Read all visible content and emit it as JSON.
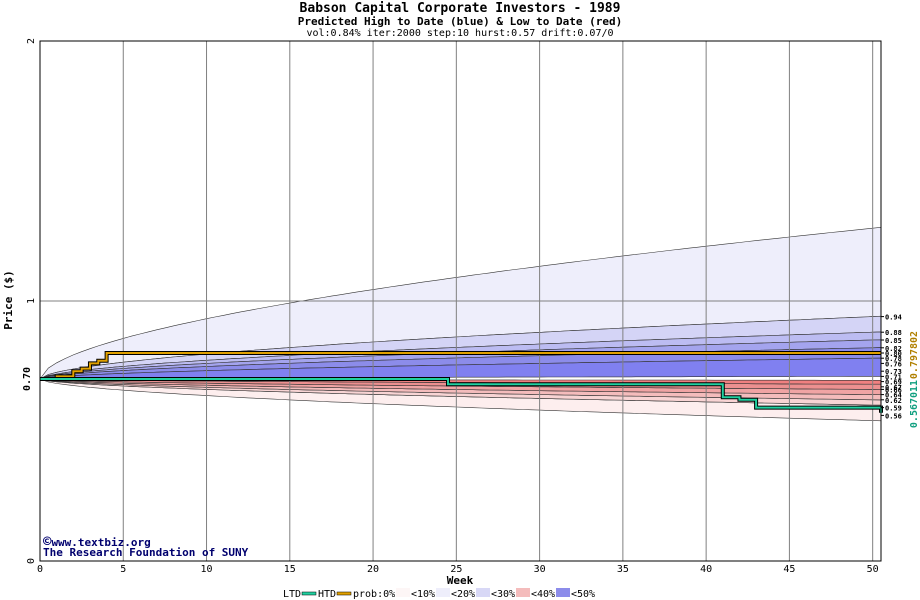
{
  "title": "Babson Capital Corporate Investors - 1989",
  "subtitle": "Predicted High to Date (blue) &  Low to Date (red)",
  "params": "vol:0.84% iter:2000 step:10 hurst:0.57 drift:0.07/0",
  "credit": {
    "copyright_symbol": "©",
    "site": "www.textbiz.org",
    "org": "The Research Foundation of SUNY"
  },
  "colors": {
    "blue_band": "#8080f0",
    "red_band": "#f08080",
    "htd_line": "#e0a000",
    "ltd_line": "#20d0a0",
    "grid": "#808080"
  },
  "chart_data": {
    "type": "line",
    "title": "Babson Capital Corporate Investors - 1989",
    "subtitle": "Predicted High to Date (blue) &  Low to Date (red)",
    "xlabel": "Week",
    "ylabel": "Price ($)",
    "xlim": [
      0,
      50.5
    ],
    "ylim": [
      0,
      2
    ],
    "x_ticks": [
      "0",
      "5",
      "10",
      "15",
      "20",
      "25",
      "30",
      "35",
      "40",
      "45",
      "50"
    ],
    "y_ticks": [
      "0",
      "1",
      "2"
    ],
    "current_price_label": "0.70",
    "current_price": 0.7,
    "grid": true,
    "series": [
      {
        "name": "HTD",
        "color": "#e0a000",
        "x": [
          0,
          1,
          2,
          2.5,
          3,
          3.5,
          4,
          50.5
        ],
        "y": [
          0.7,
          0.71,
          0.73,
          0.74,
          0.76,
          0.77,
          0.8,
          0.8
        ]
      },
      {
        "name": "LTD",
        "color": "#20d0a0",
        "x": [
          0,
          0.5,
          24.4,
          24.5,
          40.8,
          41,
          42,
          43,
          50.5
        ],
        "y": [
          0.7,
          0.7,
          0.7,
          0.68,
          0.68,
          0.63,
          0.62,
          0.59,
          0.57
        ]
      }
    ],
    "end_labels": {
      "htd": "0.797802",
      "ltd": "0.567011",
      "quantiles": [
        "0.94",
        "0.88",
        "0.85",
        "0.82",
        "0.80",
        "0.78",
        "0.76",
        "0.73",
        "0.71",
        "0.69",
        "0.67",
        "0.66",
        "0.64",
        "0.62",
        "0.59",
        "0.56"
      ]
    },
    "legend": {
      "position": "bottom",
      "items": [
        "LTD",
        "HTD",
        "prob:0%",
        "<10%",
        "<20%",
        "<30%",
        "<40%",
        "<50%"
      ]
    }
  }
}
